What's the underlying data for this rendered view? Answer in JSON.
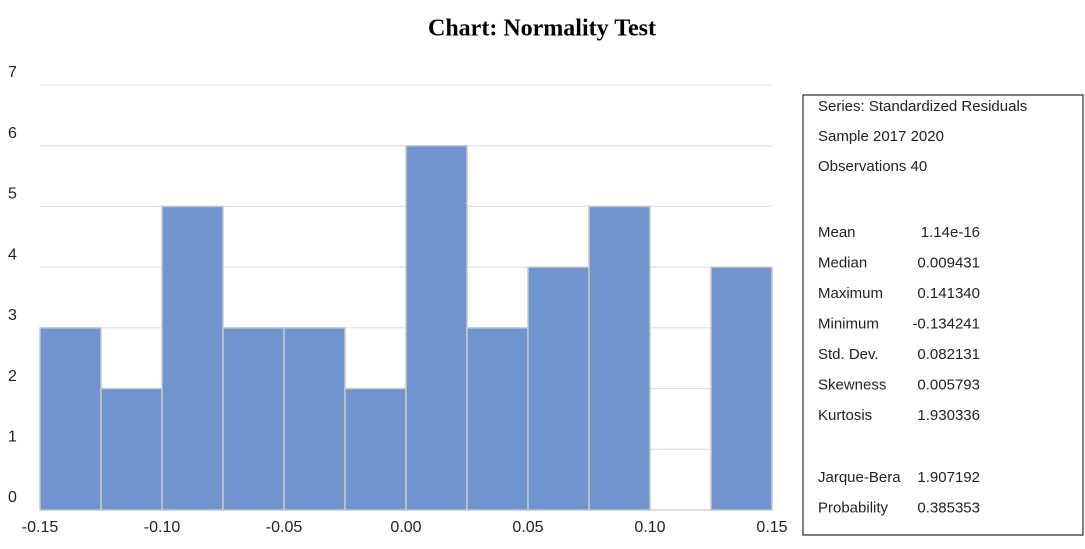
{
  "chart_data": {
    "type": "histogram",
    "title": "Chart: Normality Test",
    "bins": [
      -0.15,
      -0.125,
      -0.1,
      -0.075,
      -0.05,
      -0.025,
      0,
      0.025,
      0.05,
      0.075,
      0.1,
      0.125,
      0.15
    ],
    "values": [
      3,
      2,
      5,
      3,
      3,
      2,
      6,
      3,
      4,
      5,
      0,
      4
    ],
    "color": "#7094cd",
    "xlim": [
      -0.15,
      0.15
    ],
    "xticks": [
      -0.15,
      {
        "value": -0.1,
        "label": "-0.10"
      },
      -0.05,
      {
        "value": 0,
        "label": "0.00"
      },
      0.05,
      {
        "value": 0.1,
        "label": "0.10"
      },
      0.15
    ],
    "ylim": [
      0,
      7
    ],
    "yticks": [
      0,
      1,
      2,
      3,
      4,
      5,
      6,
      7
    ],
    "grid": true,
    "stats_box": {
      "header": [
        "Series: Standardized Residuals",
        "Sample 2017 2020",
        "Observations 40"
      ],
      "rows": [
        {
          "label": "Mean",
          "value": "1.14e-16"
        },
        {
          "label": "Median",
          "value": "0.009431"
        },
        {
          "label": "Maximum",
          "value": "0.141340"
        },
        {
          "label": "Minimum",
          "value": "-0.134241"
        },
        {
          "label": "Std. Dev.",
          "value": "0.082131"
        },
        {
          "label": "Skewness",
          "value": "0.005793"
        },
        {
          "label": "Kurtosis",
          "value": "1.930336"
        }
      ],
      "tests": [
        {
          "label": "Jarque-Bera",
          "value": "1.907192"
        },
        {
          "label": "Probability",
          "value": "0.385353"
        }
      ]
    }
  }
}
